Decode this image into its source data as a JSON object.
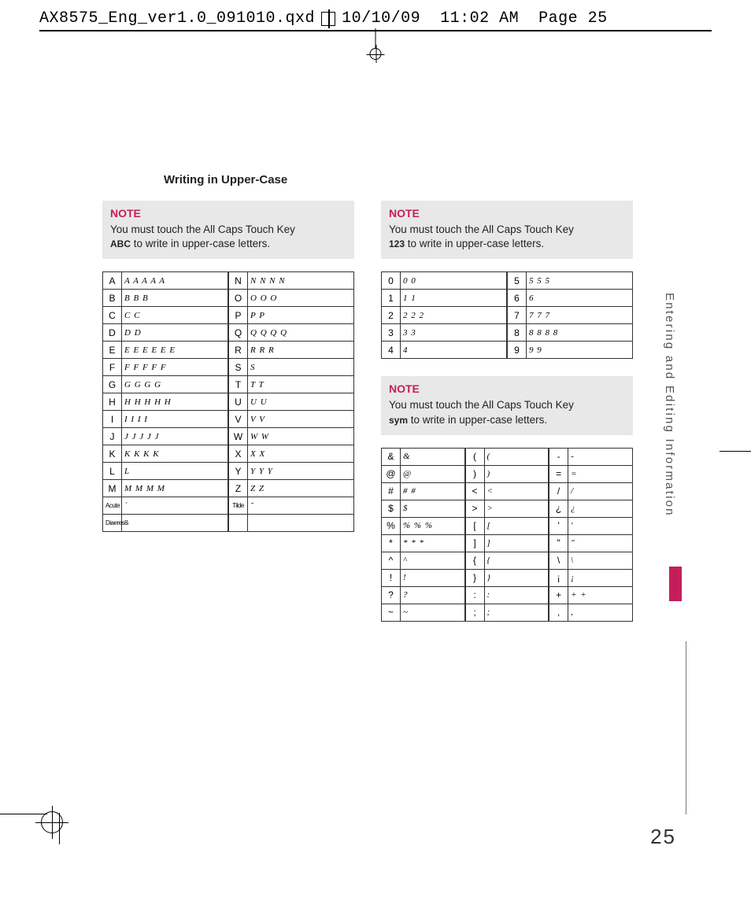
{
  "header": {
    "file": "AX8575_Eng_ver1.0_091010.qxd",
    "date": "10/10/09",
    "time": "11:02 AM",
    "page": "Page 25"
  },
  "section_title": "Writing in Upper-Case",
  "side_tab": "Entering and Editing Information",
  "page_number": "25",
  "notes": {
    "abc": {
      "label": "NOTE",
      "line1": "You must touch the All Caps Touch Key",
      "key": "ABC",
      "line2": " to write in upper-case letters."
    },
    "num": {
      "label": "NOTE",
      "line1": "You must touch the All Caps Touch Key",
      "key": "123",
      "line2": " to write in upper-case letters."
    },
    "sym": {
      "label": "NOTE",
      "line1": "You must touch the All Caps Touch Key",
      "key": "sym",
      "line2": " to write in upper-case letters."
    }
  },
  "letters_left": [
    {
      "k": "A",
      "s": "A A A A A"
    },
    {
      "k": "B",
      "s": "B B B"
    },
    {
      "k": "C",
      "s": "C  C"
    },
    {
      "k": "D",
      "s": "D  D"
    },
    {
      "k": "E",
      "s": "E E E E E E"
    },
    {
      "k": "F",
      "s": "F F F F F"
    },
    {
      "k": "G",
      "s": "G G G G"
    },
    {
      "k": "H",
      "s": "H H H H H"
    },
    {
      "k": "I",
      "s": "I  I  I I"
    },
    {
      "k": "J",
      "s": "J  J J J J"
    },
    {
      "k": "K",
      "s": "K  K  K K"
    },
    {
      "k": "L",
      "s": "L"
    },
    {
      "k": "M",
      "s": "M M M M"
    }
  ],
  "letters_left_extra": [
    {
      "k": "Acute",
      "s": "´"
    },
    {
      "k": "Diaeresis",
      "s": "¨"
    }
  ],
  "letters_right": [
    {
      "k": "N",
      "s": "N N N N"
    },
    {
      "k": "O",
      "s": "O  O  O"
    },
    {
      "k": "P",
      "s": "P  P"
    },
    {
      "k": "Q",
      "s": "Q Q Q Q"
    },
    {
      "k": "R",
      "s": "R R R"
    },
    {
      "k": "S",
      "s": "S"
    },
    {
      "k": "T",
      "s": "T  T"
    },
    {
      "k": "U",
      "s": "U  U"
    },
    {
      "k": "V",
      "s": "V V"
    },
    {
      "k": "W",
      "s": "W W"
    },
    {
      "k": "X",
      "s": "X  X"
    },
    {
      "k": "Y",
      "s": "Y Y Y"
    },
    {
      "k": "Z",
      "s": "Z  Z"
    }
  ],
  "letters_right_extra": [
    {
      "k": "Tilde",
      "s": "˜"
    },
    {
      "k": "",
      "s": ""
    }
  ],
  "numbers_left": [
    {
      "k": "0",
      "s": "0  0"
    },
    {
      "k": "1",
      "s": "1  1"
    },
    {
      "k": "2",
      "s": "2 2 2"
    },
    {
      "k": "3",
      "s": "3  3"
    },
    {
      "k": "4",
      "s": "4"
    }
  ],
  "numbers_right": [
    {
      "k": "5",
      "s": "5 5 5"
    },
    {
      "k": "6",
      "s": "6"
    },
    {
      "k": "7",
      "s": "7 7 7"
    },
    {
      "k": "8",
      "s": "8 8 8 8"
    },
    {
      "k": "9",
      "s": "9 9"
    }
  ],
  "symbols_c1": [
    {
      "k": "&",
      "s": "&"
    },
    {
      "k": "@",
      "s": "@"
    },
    {
      "k": "#",
      "s": "# #"
    },
    {
      "k": "$",
      "s": "$"
    },
    {
      "k": "%",
      "s": "% % %"
    },
    {
      "k": "*",
      "s": "* * *"
    },
    {
      "k": "^",
      "s": "^"
    },
    {
      "k": "!",
      "s": "!"
    },
    {
      "k": "?",
      "s": "?"
    },
    {
      "k": "~",
      "s": "~"
    }
  ],
  "symbols_c2": [
    {
      "k": "(",
      "s": "("
    },
    {
      "k": ")",
      "s": ")"
    },
    {
      "k": "<",
      "s": "<"
    },
    {
      "k": ">",
      "s": ">"
    },
    {
      "k": "[",
      "s": "["
    },
    {
      "k": "]",
      "s": "]"
    },
    {
      "k": "{",
      "s": "{"
    },
    {
      "k": "}",
      "s": "}"
    },
    {
      "k": ":",
      "s": ":"
    },
    {
      "k": ";",
      "s": ";"
    }
  ],
  "symbols_c3": [
    {
      "k": "-",
      "s": "-"
    },
    {
      "k": "=",
      "s": "="
    },
    {
      "k": "/",
      "s": "/"
    },
    {
      "k": "¿",
      "s": "¿"
    },
    {
      "k": "'",
      "s": "'"
    },
    {
      "k": "\"",
      "s": "\""
    },
    {
      "k": "\\",
      "s": "\\"
    },
    {
      "k": "¡",
      "s": "¡"
    },
    {
      "k": "+",
      "s": "+ +"
    },
    {
      "k": ",",
      "s": ","
    }
  ]
}
